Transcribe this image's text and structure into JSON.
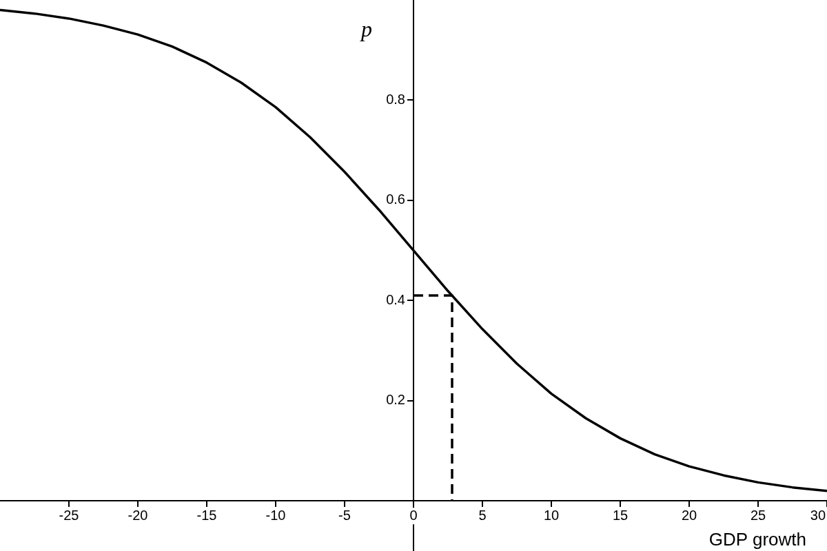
{
  "chart_data": {
    "type": "line",
    "xlabel": "GDP growth",
    "ylabel": "p",
    "xlim": [
      -30,
      30
    ],
    "ylim": [
      -0.1,
      1.0
    ],
    "xticks": [
      -25,
      -20,
      -15,
      -10,
      -5,
      0,
      5,
      10,
      15,
      20,
      25,
      30
    ],
    "yticks": [
      0.2,
      0.4,
      0.6,
      0.8
    ],
    "grid": false,
    "legend": false,
    "marker": "none",
    "series": [
      {
        "color": "#000000",
        "line_style": "solid",
        "x": [
          -30,
          -27.5,
          -25,
          -22.5,
          -20,
          -17.5,
          -15,
          -12.5,
          -10,
          -7.5,
          -5,
          -2.5,
          0,
          2.5,
          5,
          7.5,
          10,
          12.5,
          15,
          17.5,
          20,
          22.5,
          25,
          27.5,
          30
        ],
        "values": [
          0.98,
          0.973,
          0.963,
          0.949,
          0.931,
          0.907,
          0.875,
          0.835,
          0.786,
          0.726,
          0.657,
          0.581,
          0.5,
          0.419,
          0.343,
          0.274,
          0.214,
          0.165,
          0.125,
          0.093,
          0.069,
          0.051,
          0.037,
          0.027,
          0.02
        ]
      },
      {
        "color": "#000000",
        "line_style": "dashed",
        "x": [
          0,
          2.8,
          2.8
        ],
        "values": [
          0.41,
          0.41,
          0
        ]
      }
    ]
  }
}
